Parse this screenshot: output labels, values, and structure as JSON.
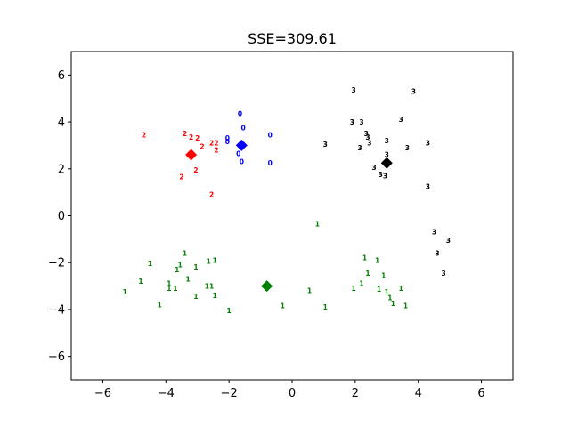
{
  "chart_data": {
    "type": "scatter",
    "title": "SSE=309.61",
    "xlabel": "",
    "ylabel": "",
    "xlim": [
      -7,
      7
    ],
    "ylim": [
      -7,
      7
    ],
    "xticks": [
      -6,
      -4,
      -2,
      0,
      2,
      4,
      6
    ],
    "yticks": [
      -6,
      -4,
      -2,
      0,
      2,
      4,
      6
    ],
    "xtick_labels": [
      "−6",
      "−4",
      "−2",
      "0",
      "2",
      "4",
      "6"
    ],
    "ytick_labels": [
      "−6",
      "−4",
      "−2",
      "0",
      "2",
      "4",
      "6"
    ],
    "grid": false,
    "cluster_colors": [
      "#0000ff",
      "#008000",
      "#ff0000",
      "#000000"
    ],
    "points": [
      {
        "x": -1.65,
        "y": 4.35,
        "c": 0
      },
      {
        "x": -1.55,
        "y": 3.75,
        "c": 0
      },
      {
        "x": -0.7,
        "y": 3.45,
        "c": 0
      },
      {
        "x": -2.05,
        "y": 3.3,
        "c": 0
      },
      {
        "x": -2.05,
        "y": 3.15,
        "c": 0
      },
      {
        "x": -1.7,
        "y": 2.65,
        "c": 0
      },
      {
        "x": -1.6,
        "y": 2.3,
        "c": 0
      },
      {
        "x": -0.7,
        "y": 2.25,
        "c": 0
      },
      {
        "x": 0.8,
        "y": -0.35,
        "c": 1
      },
      {
        "x": -3.4,
        "y": -1.6,
        "c": 1
      },
      {
        "x": -4.5,
        "y": -2.05,
        "c": 1
      },
      {
        "x": -3.55,
        "y": -2.1,
        "c": 1
      },
      {
        "x": -3.65,
        "y": -2.3,
        "c": 1
      },
      {
        "x": -2.65,
        "y": -1.95,
        "c": 1
      },
      {
        "x": -2.45,
        "y": -1.9,
        "c": 1
      },
      {
        "x": -3.05,
        "y": -2.2,
        "c": 1
      },
      {
        "x": -4.8,
        "y": -2.8,
        "c": 1
      },
      {
        "x": -3.3,
        "y": -2.7,
        "c": 1
      },
      {
        "x": -3.9,
        "y": -2.9,
        "c": 1
      },
      {
        "x": -3.9,
        "y": -3.1,
        "c": 1
      },
      {
        "x": -3.7,
        "y": -3.1,
        "c": 1
      },
      {
        "x": -2.7,
        "y": -3.0,
        "c": 1
      },
      {
        "x": -2.55,
        "y": -3.0,
        "c": 1
      },
      {
        "x": -5.3,
        "y": -3.25,
        "c": 1
      },
      {
        "x": -3.05,
        "y": -3.45,
        "c": 1
      },
      {
        "x": -2.45,
        "y": -3.4,
        "c": 1
      },
      {
        "x": -4.2,
        "y": -3.8,
        "c": 1
      },
      {
        "x": -2.0,
        "y": -4.05,
        "c": 1
      },
      {
        "x": -0.3,
        "y": -3.85,
        "c": 1
      },
      {
        "x": 0.55,
        "y": -3.2,
        "c": 1
      },
      {
        "x": 1.05,
        "y": -3.9,
        "c": 1
      },
      {
        "x": 2.3,
        "y": -1.8,
        "c": 1
      },
      {
        "x": 2.7,
        "y": -1.9,
        "c": 1
      },
      {
        "x": 2.4,
        "y": -2.45,
        "c": 1
      },
      {
        "x": 2.9,
        "y": -2.55,
        "c": 1
      },
      {
        "x": 2.2,
        "y": -2.9,
        "c": 1
      },
      {
        "x": 1.95,
        "y": -3.1,
        "c": 1
      },
      {
        "x": 2.75,
        "y": -3.15,
        "c": 1
      },
      {
        "x": 3.0,
        "y": -3.25,
        "c": 1
      },
      {
        "x": 3.45,
        "y": -3.1,
        "c": 1
      },
      {
        "x": 3.1,
        "y": -3.5,
        "c": 1
      },
      {
        "x": 3.2,
        "y": -3.75,
        "c": 1
      },
      {
        "x": 3.6,
        "y": -3.85,
        "c": 1
      },
      {
        "x": -4.7,
        "y": 3.45,
        "c": 2
      },
      {
        "x": -3.4,
        "y": 3.5,
        "c": 2
      },
      {
        "x": -3.2,
        "y": 3.35,
        "c": 2
      },
      {
        "x": -3.0,
        "y": 3.3,
        "c": 2
      },
      {
        "x": -2.55,
        "y": 3.1,
        "c": 2
      },
      {
        "x": -2.4,
        "y": 3.1,
        "c": 2
      },
      {
        "x": -2.85,
        "y": 2.95,
        "c": 2
      },
      {
        "x": -2.4,
        "y": 2.8,
        "c": 2
      },
      {
        "x": -3.05,
        "y": 1.95,
        "c": 2
      },
      {
        "x": -3.5,
        "y": 1.65,
        "c": 2
      },
      {
        "x": -2.55,
        "y": 0.9,
        "c": 2
      },
      {
        "x": 1.95,
        "y": 5.35,
        "c": 3
      },
      {
        "x": 3.85,
        "y": 5.3,
        "c": 3
      },
      {
        "x": 3.45,
        "y": 4.1,
        "c": 3
      },
      {
        "x": 1.9,
        "y": 4.0,
        "c": 3
      },
      {
        "x": 2.2,
        "y": 4.0,
        "c": 3
      },
      {
        "x": 2.35,
        "y": 3.5,
        "c": 3
      },
      {
        "x": 2.4,
        "y": 3.35,
        "c": 3
      },
      {
        "x": 2.45,
        "y": 3.1,
        "c": 3
      },
      {
        "x": 1.05,
        "y": 3.05,
        "c": 3
      },
      {
        "x": 3.0,
        "y": 3.2,
        "c": 3
      },
      {
        "x": 2.15,
        "y": 2.9,
        "c": 3
      },
      {
        "x": 3.65,
        "y": 2.9,
        "c": 3
      },
      {
        "x": 4.3,
        "y": 3.1,
        "c": 3
      },
      {
        "x": 3.0,
        "y": 2.6,
        "c": 3
      },
      {
        "x": 2.6,
        "y": 2.05,
        "c": 3
      },
      {
        "x": 2.8,
        "y": 1.75,
        "c": 3
      },
      {
        "x": 2.95,
        "y": 1.7,
        "c": 3
      },
      {
        "x": 4.3,
        "y": 1.25,
        "c": 3
      },
      {
        "x": 4.5,
        "y": -0.7,
        "c": 3
      },
      {
        "x": 4.95,
        "y": -1.05,
        "c": 3
      },
      {
        "x": 4.6,
        "y": -1.6,
        "c": 3
      },
      {
        "x": 4.8,
        "y": -2.45,
        "c": 3
      }
    ],
    "centroids": [
      {
        "x": -1.6,
        "y": 3.0,
        "c": 0
      },
      {
        "x": -0.8,
        "y": -3.0,
        "c": 1
      },
      {
        "x": -3.2,
        "y": 2.6,
        "c": 2
      },
      {
        "x": 3.0,
        "y": 2.25,
        "c": 3
      }
    ]
  }
}
